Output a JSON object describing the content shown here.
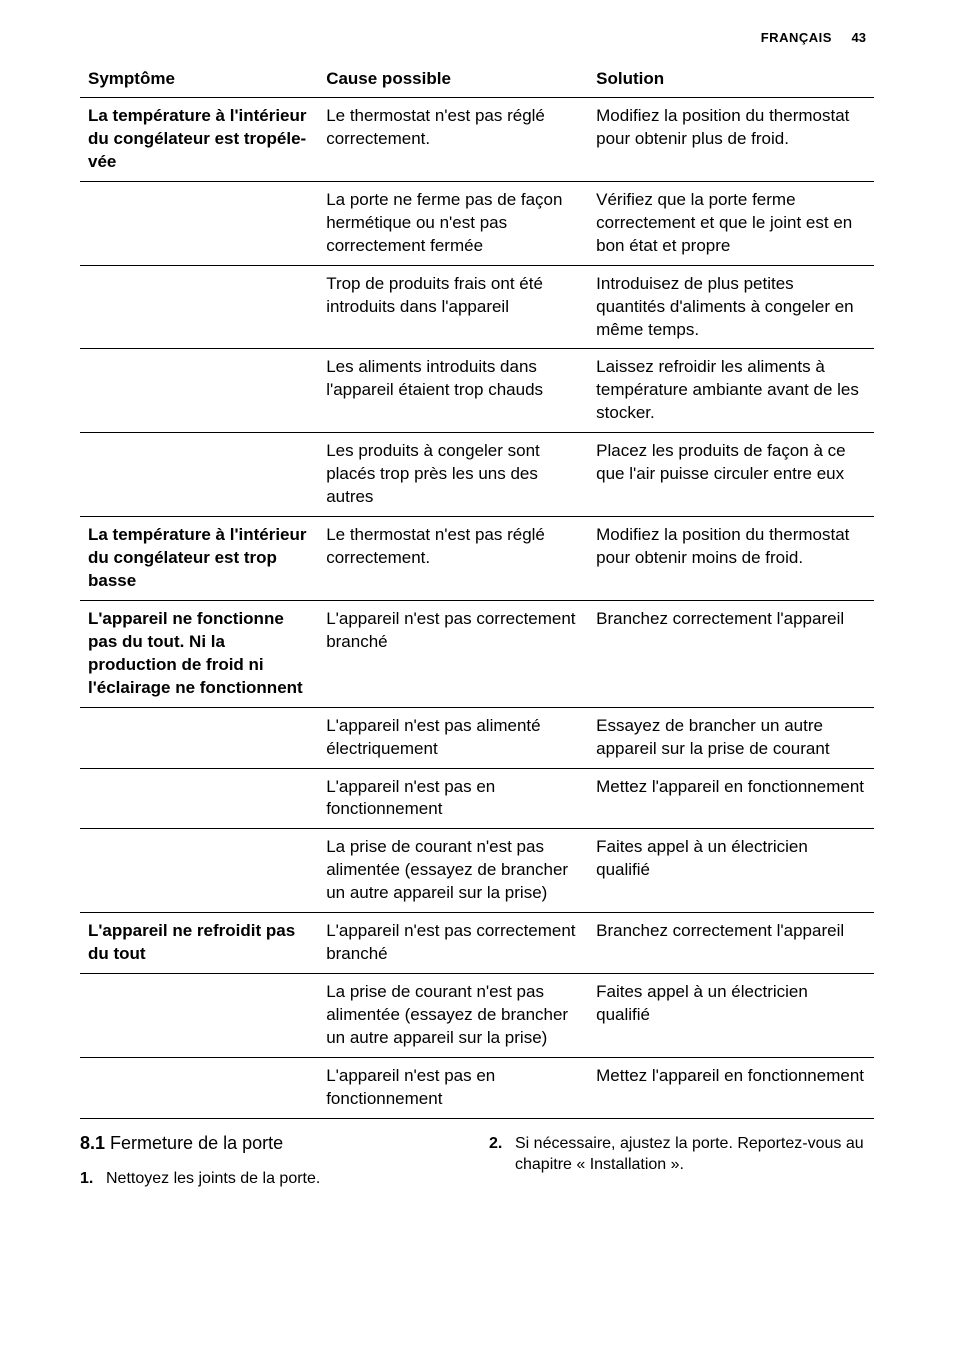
{
  "header": {
    "language": "FRANÇAIS",
    "page_number": "43"
  },
  "table": {
    "columns": [
      "Symptôme",
      "Cause possible",
      "Solution"
    ],
    "rows": [
      {
        "symptom": "La température à l'intérieur du congé­lateur est tropéle­vée",
        "cause": "Le thermostat n'est pas réglé correctement.",
        "solution": "Modifiez la position du thermostat pour obtenir plus de froid."
      },
      {
        "symptom": "",
        "cause": "La porte ne ferme pas de façon hermétique ou n'est pas correctement fermée",
        "solution": "Vérifiez que la porte ferme correctement et que le joint est en bon état et propre"
      },
      {
        "symptom": "",
        "cause": "Trop de produits frais ont été introduits dans l'ap­pareil",
        "solution": "Introduisez de plus petites quantités d'aliments à con­geler en même temps."
      },
      {
        "symptom": "",
        "cause": "Les aliments introduits dans l'appareil étaient trop chauds",
        "solution": "Laissez refroidir les ali­ments à température am­biante avant de les stoc­ker."
      },
      {
        "symptom": "",
        "cause": "Les produits à congeler sont placés trop près les uns des autres",
        "solution": "Placez les produits de fa­çon à ce que l'air puisse circuler entre eux"
      },
      {
        "symptom": "La température à l'intérieur du congé­lateur est trop basse",
        "cause": "Le thermostat n'est pas réglé correctement.",
        "solution": "Modifiez la position du thermostat pour obtenir moins de froid."
      },
      {
        "symptom": "L'appareil ne fonc­tionne pas du tout. Ni la production de froid ni l'éclairage ne fonctionnent",
        "cause": "L'appareil n'est pas cor­rectement branché",
        "solution": "Branchez correctement l'appareil"
      },
      {
        "symptom": "",
        "cause": "L'appareil n'est pas ali­menté électriquement",
        "solution": "Essayez de brancher un autre appareil sur la prise de courant"
      },
      {
        "symptom": "",
        "cause": "L'appareil n'est pas en fonctionnement",
        "solution": "Mettez l'appareil en fonc­tionnement"
      },
      {
        "symptom": "",
        "cause": "La prise de courant n'est pas alimentée (essayez de brancher un autre appa­reil sur la prise)",
        "solution": "Faites appel à un électri­cien qualifié"
      },
      {
        "symptom": "L'appareil ne refroi­dit pas du tout",
        "cause": "L'appareil n'est pas cor­rectement branché",
        "solution": "Branchez correctement l'appareil"
      },
      {
        "symptom": "",
        "cause": "La prise de courant n'est pas alimentée (essayez de brancher un autre appa­reil sur la prise)",
        "solution": "Faites appel à un électri­cien qualifié"
      },
      {
        "symptom": "",
        "cause": "L'appareil n'est pas en fonctionnement",
        "solution": "Mettez l'appareil en fonc­tionnement"
      }
    ]
  },
  "section81": {
    "number": "8.1",
    "title": "Fermeture de la porte",
    "items": [
      {
        "n": "1.",
        "text": "Nettoyez les joints de la porte."
      },
      {
        "n": "2.",
        "text": "Si nécessaire, ajustez la porte. Re­portez-vous au chapitre « Installa­tion »."
      }
    ]
  }
}
